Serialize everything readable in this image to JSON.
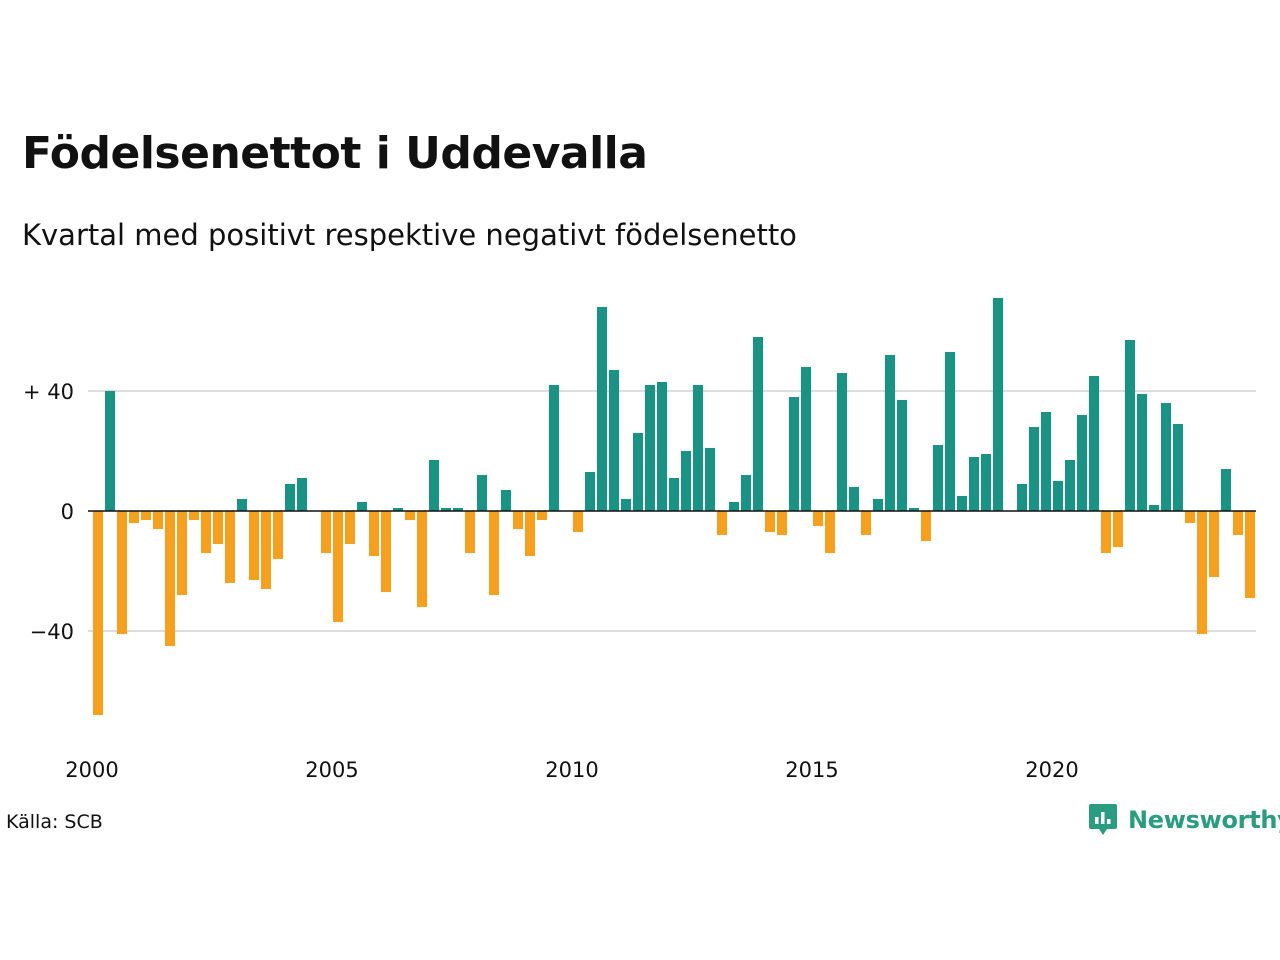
{
  "title": "Födelsenettot i Uddevalla",
  "subtitle": "Kvartal med positivt respektive negativt födelsenetto",
  "source": "Källa: SCB",
  "brand": {
    "name": "Newsworthy",
    "icon": "newsworthy-logo-icon",
    "color": "#1e8f7a"
  },
  "colors": {
    "positive": "#1a9385",
    "negative": "#f5a01e",
    "grid": "#dddddd",
    "zero": "#111111"
  },
  "chart_data": {
    "type": "bar",
    "title": "Födelsenettot i Uddevalla",
    "subtitle": "Kvartal med positivt respektive negativt födelsenetto",
    "xlabel": "",
    "ylabel": "",
    "ylim": [
      -68,
      72
    ],
    "y_ticks": [
      {
        "value": 40,
        "label": "+ 40"
      },
      {
        "value": 0,
        "label": "0"
      },
      {
        "value": -40,
        "label": "−40"
      }
    ],
    "x_ticks": [
      {
        "value": 2000,
        "label": "2000"
      },
      {
        "value": 2005,
        "label": "2005"
      },
      {
        "value": 2010,
        "label": "2010"
      },
      {
        "value": 2015,
        "label": "2015"
      },
      {
        "value": 2020,
        "label": "2020"
      }
    ],
    "grid": true,
    "legend": "none",
    "start_year": 2000,
    "values": [
      -68,
      40,
      -41,
      -4,
      -3,
      -6,
      -45,
      -28,
      -3,
      -14,
      -11,
      -24,
      4,
      -23,
      -26,
      -16,
      9,
      11,
      0,
      -14,
      -37,
      -11,
      3,
      -15,
      -27,
      1,
      -3,
      -32,
      17,
      1,
      1,
      -14,
      12,
      -28,
      7,
      -6,
      -15,
      -3,
      42,
      0,
      -7,
      13,
      68,
      47,
      4,
      26,
      42,
      43,
      11,
      20,
      42,
      21,
      -8,
      3,
      12,
      58,
      -7,
      -8,
      38,
      48,
      -5,
      -14,
      46,
      8,
      -8,
      4,
      52,
      37,
      1,
      -10,
      22,
      53,
      5,
      18,
      19,
      71,
      0,
      9,
      28,
      33,
      10,
      17,
      32,
      45,
      -14,
      -12,
      57,
      39,
      2,
      36,
      29,
      -4,
      -41,
      -22,
      14,
      -8,
      -29
    ]
  }
}
